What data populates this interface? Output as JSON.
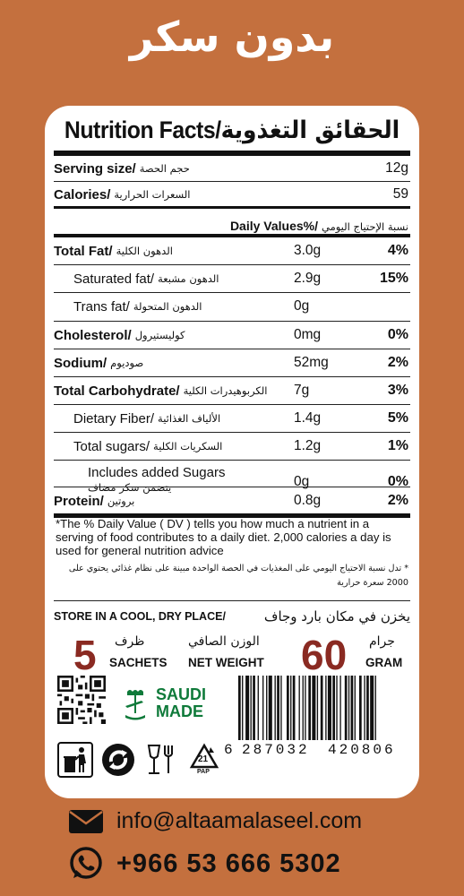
{
  "header": {
    "title_ar": "بدون سكر"
  },
  "nutrition": {
    "title_en": "Nutrition Facts/",
    "title_ar": "الحقائق التغذوية",
    "serving": {
      "label": "Serving size/",
      "label_ar": "حجم الحصة",
      "value": "12g"
    },
    "calories": {
      "label": "Calories/",
      "label_ar": "السعرات الحرارية",
      "value": "59"
    },
    "dv_header": {
      "label": "Daily Values%/",
      "label_ar": "نسبة الإحتياج اليومي"
    },
    "rows": [
      {
        "label": "Total Fat/",
        "label_ar": "الدهون الكلية",
        "value": "3.0g",
        "pct": "4%"
      },
      {
        "label": "Saturated fat/",
        "label_ar": "الدهون مشبعة",
        "value": "2.9g",
        "pct": "15%"
      },
      {
        "label": "Trans fat/",
        "label_ar": "الدهون المتحولة",
        "value": "0g",
        "pct": ""
      },
      {
        "label": "Cholesterol/",
        "label_ar": "كوليستيرول",
        "value": "0mg",
        "pct": "0%"
      },
      {
        "label": "Sodium/",
        "label_ar": "صوديوم",
        "value": "52mg",
        "pct": "2%"
      },
      {
        "label": "Total Carbohydrate/",
        "label_ar": "الكربوهيدرات الكلية",
        "value": "7g",
        "pct": "3%"
      },
      {
        "label": "Dietary Fiber/",
        "label_ar": "الألياف الغذائية",
        "value": "1.4g",
        "pct": "5%"
      },
      {
        "label": "Total sugars/",
        "label_ar": "السكريات الكلية",
        "value": "1.2g",
        "pct": "1%"
      },
      {
        "label": "Includes added Sugars",
        "label_ar": "يتضمن سكر مضاف",
        "value": "0g",
        "pct": "0%"
      },
      {
        "label": "Protein/",
        "label_ar": "بروتين",
        "value": "0.8g",
        "pct": "2%"
      }
    ],
    "footnote_en": "*The % Daily Value ( DV ) tells you how much a nutrient in a serving of food contributes to a daily diet. 2,000 calories a day is used for general nutrition advice",
    "footnote_ar": "* تدل نسبة الاحتياج اليومي على المغذيات في الحصة الواحدة مبينة على نظام غذائي يحتوي على 2000 سعرة حرارية"
  },
  "storage": {
    "en": "STORE IN A COOL, DRY PLACE/",
    "ar": "يخزن في مكان بارد وجاف"
  },
  "net": {
    "sachets_num": "5",
    "sachets_en": "SACHETS",
    "sachets_ar": "ظرف",
    "weight_en": "NET WEIGHT",
    "weight_ar": "الوزن الصافي",
    "gram_num": "60",
    "gram_en": "GRAM",
    "gram_ar": "جرام"
  },
  "saudi_made": {
    "line1": "SAUDI",
    "line2": "MADE"
  },
  "barcode": {
    "digits_lead": "6",
    "digits_left": "287032",
    "digits_right": "420806"
  },
  "recycle": {
    "code": "21",
    "material": "PAP"
  },
  "contact": {
    "email": "info@altaamalaseel.com",
    "phone": "+966 53 666 5302"
  },
  "colors": {
    "background": "#c4703e",
    "accent": "#8a2a22",
    "saudi_green": "#0f7a3a"
  }
}
